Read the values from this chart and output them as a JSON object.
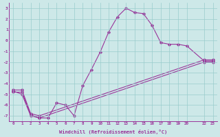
{
  "xlabel": "Windchill (Refroidissement éolien,°C)",
  "bg_color": "#cde8e8",
  "line_color": "#993399",
  "grid_color": "#99cccc",
  "xlim": [
    -0.5,
    23.5
  ],
  "ylim": [
    -7.5,
    3.5
  ],
  "yticks": [
    -7,
    -6,
    -5,
    -4,
    -3,
    -2,
    -1,
    0,
    1,
    2,
    3
  ],
  "xticks": [
    0,
    1,
    2,
    3,
    4,
    5,
    6,
    7,
    8,
    9,
    10,
    11,
    12,
    13,
    14,
    15,
    16,
    17,
    18,
    19,
    20,
    22,
    23
  ],
  "series1_x": [
    0,
    1,
    2,
    3,
    4,
    5,
    6,
    7,
    8,
    9,
    10,
    11,
    12,
    13,
    14,
    15,
    16,
    17,
    18,
    19,
    20,
    22,
    23
  ],
  "series1_y": [
    -4.7,
    -5.0,
    -7.0,
    -7.2,
    -7.2,
    -5.8,
    -6.0,
    -7.0,
    -4.2,
    -2.7,
    -1.1,
    0.8,
    2.2,
    3.0,
    2.6,
    2.5,
    1.4,
    -0.2,
    -0.35,
    -0.35,
    -0.5,
    -1.9,
    -1.9
  ],
  "series2_x": [
    0,
    1,
    2,
    3,
    22,
    23
  ],
  "series2_y": [
    -4.8,
    -4.8,
    -6.9,
    -7.2,
    -2.0,
    -2.0
  ],
  "series3_x": [
    0,
    1,
    2,
    3,
    22,
    23
  ],
  "series3_y": [
    -4.6,
    -4.6,
    -6.8,
    -7.0,
    -1.8,
    -1.8
  ]
}
